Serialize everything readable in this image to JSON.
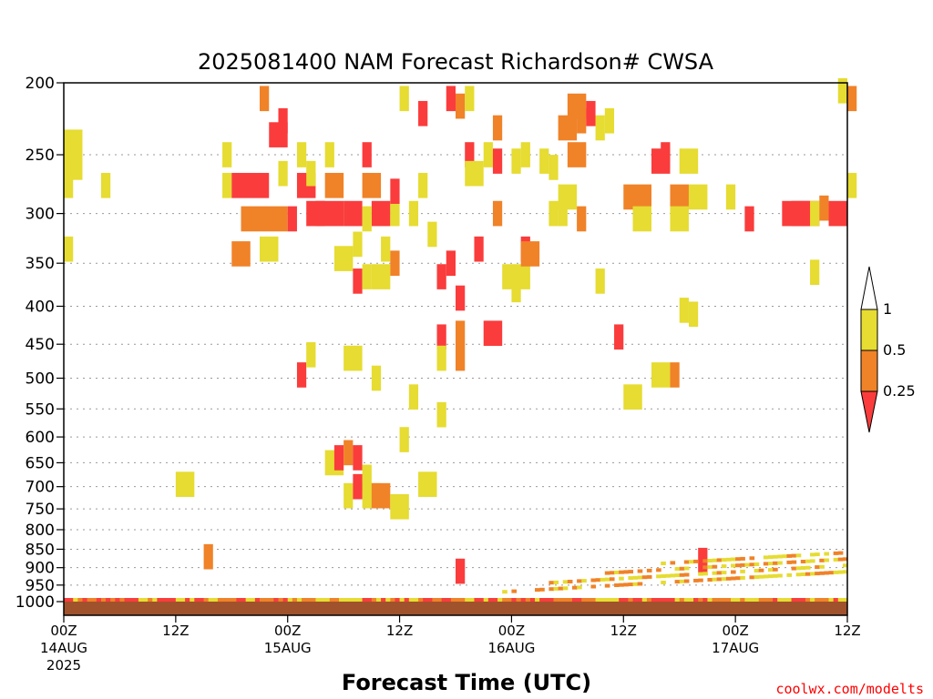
{
  "chart_data": {
    "type": "heatmap",
    "title": "2025081400 NAM Forecast Richardson# CWSA",
    "xlabel": "Forecast Time (UTC)",
    "ylabel": "",
    "credit": "coolwx.com/modelts",
    "x_hours_range": [
      0,
      84
    ],
    "y_pressure_range_hPa": [
      1000,
      200
    ],
    "y_scale": "log-pressure, inverted",
    "grid": "dotted horizontal lines at pressure ticks",
    "x_ticks": [
      {
        "hour": 0,
        "lines": [
          "00Z",
          "14AUG",
          "2025"
        ]
      },
      {
        "hour": 12,
        "lines": [
          "12Z"
        ]
      },
      {
        "hour": 24,
        "lines": [
          "00Z",
          "15AUG"
        ]
      },
      {
        "hour": 36,
        "lines": [
          "12Z"
        ]
      },
      {
        "hour": 48,
        "lines": [
          "00Z",
          "16AUG"
        ]
      },
      {
        "hour": 60,
        "lines": [
          "12Z"
        ]
      },
      {
        "hour": 72,
        "lines": [
          "00Z",
          "17AUG"
        ]
      },
      {
        "hour": 84,
        "lines": [
          "12Z"
        ]
      }
    ],
    "y_ticks": [
      200,
      250,
      300,
      350,
      400,
      450,
      500,
      550,
      600,
      650,
      700,
      750,
      800,
      850,
      900,
      950,
      1000
    ],
    "legend": {
      "position": "right",
      "labels": [
        "1",
        "0.5",
        "0.25"
      ],
      "bins": [
        {
          "range": "0.5-1",
          "color": "#e6dc32"
        },
        {
          "range": "0.25-0.5",
          "color": "#f08228"
        },
        {
          "range": "<0.25",
          "color": "#fa3c3c"
        }
      ]
    },
    "colors": {
      "low": "#fa3c3c",
      "mid": "#f08228",
      "high": "#e6dc32",
      "ground": "#a0522d"
    },
    "cells": [
      [
        0,
        250,
        2,
        2,
        "high"
      ],
      [
        0,
        275,
        1,
        1,
        "high"
      ],
      [
        0,
        335,
        1,
        1,
        "high"
      ],
      [
        4,
        275,
        1,
        1,
        "high"
      ],
      [
        12,
        695,
        2,
        1,
        "high"
      ],
      [
        17,
        250,
        1,
        1,
        "high"
      ],
      [
        17,
        275,
        1,
        1,
        "high"
      ],
      [
        18,
        275,
        4,
        1,
        "low"
      ],
      [
        19,
        305,
        5,
        1,
        "mid"
      ],
      [
        18,
        340,
        2,
        1,
        "mid"
      ],
      [
        21,
        335,
        2,
        1,
        "high"
      ],
      [
        21,
        210,
        1,
        1,
        "mid"
      ],
      [
        22,
        235,
        2,
        1,
        "low"
      ],
      [
        23,
        265,
        1,
        1,
        "high"
      ],
      [
        23,
        225,
        1,
        1,
        "low"
      ],
      [
        24,
        305,
        1,
        1,
        "low"
      ],
      [
        25,
        275,
        2,
        1,
        "low"
      ],
      [
        25,
        250,
        1,
        1,
        "high"
      ],
      [
        26,
        300,
        2,
        1,
        "low"
      ],
      [
        26,
        265,
        1,
        1,
        "high"
      ],
      [
        27,
        300,
        3,
        1,
        "low"
      ],
      [
        28,
        250,
        1,
        1,
        "high"
      ],
      [
        28,
        275,
        2,
        1,
        "mid"
      ],
      [
        29,
        345,
        2,
        1,
        "high"
      ],
      [
        30,
        300,
        2,
        1,
        "low"
      ],
      [
        31,
        330,
        1,
        1,
        "high"
      ],
      [
        31,
        370,
        1,
        1,
        "low"
      ],
      [
        32,
        365,
        1,
        1,
        "high"
      ],
      [
        32,
        250,
        1,
        1,
        "low"
      ],
      [
        32,
        275,
        2,
        1,
        "mid"
      ],
      [
        33,
        300,
        2,
        1,
        "low"
      ],
      [
        32,
        305,
        1,
        1,
        "high"
      ],
      [
        33,
        365,
        2,
        1,
        "high"
      ],
      [
        34,
        335,
        1,
        1,
        "high"
      ],
      [
        35,
        300,
        1,
        1,
        "high"
      ],
      [
        35,
        280,
        1,
        1,
        "low"
      ],
      [
        35,
        350,
        1,
        1,
        "mid"
      ],
      [
        36,
        210,
        1,
        1,
        "high"
      ],
      [
        38,
        275,
        1,
        1,
        "high"
      ],
      [
        37,
        300,
        1,
        1,
        "high"
      ],
      [
        39,
        320,
        1,
        1,
        "high"
      ],
      [
        38,
        220,
        1,
        1,
        "low"
      ],
      [
        41,
        210,
        1,
        1,
        "low"
      ],
      [
        42,
        215,
        1,
        1,
        "mid"
      ],
      [
        43,
        210,
        1,
        1,
        "high"
      ],
      [
        41,
        350,
        1,
        1,
        "low"
      ],
      [
        40,
        365,
        1,
        1,
        "low"
      ],
      [
        40,
        440,
        1,
        1,
        "low"
      ],
      [
        40,
        470,
        1,
        1,
        "high"
      ],
      [
        42,
        390,
        1,
        1,
        "low"
      ],
      [
        42,
        435,
        1,
        1,
        "mid"
      ],
      [
        42,
        470,
        1,
        1,
        "mid"
      ],
      [
        43,
        250,
        1,
        1,
        "low"
      ],
      [
        43,
        265,
        2,
        1,
        "high"
      ],
      [
        45,
        250,
        1,
        1,
        "high"
      ],
      [
        44,
        335,
        1,
        1,
        "low"
      ],
      [
        45,
        435,
        2,
        1,
        "low"
      ],
      [
        46,
        230,
        1,
        1,
        "mid"
      ],
      [
        46,
        255,
        1,
        1,
        "low"
      ],
      [
        48,
        255,
        1,
        1,
        "high"
      ],
      [
        46,
        300,
        1,
        1,
        "mid"
      ],
      [
        47,
        365,
        3,
        1,
        "high"
      ],
      [
        48,
        380,
        1,
        1,
        "high"
      ],
      [
        49,
        335,
        1,
        1,
        "low"
      ],
      [
        49,
        340,
        2,
        1,
        "mid"
      ],
      [
        49,
        250,
        1,
        1,
        "high"
      ],
      [
        51,
        255,
        1,
        1,
        "high"
      ],
      [
        52,
        260,
        1,
        1,
        "high"
      ],
      [
        52,
        300,
        1,
        1,
        "high"
      ],
      [
        53,
        300,
        1,
        1,
        "high"
      ],
      [
        53,
        230,
        2,
        1,
        "mid"
      ],
      [
        54,
        215,
        2,
        1,
        "mid"
      ],
      [
        54,
        250,
        2,
        1,
        "mid"
      ],
      [
        55,
        305,
        1,
        1,
        "mid"
      ],
      [
        57,
        230,
        1,
        1,
        "high"
      ],
      [
        58,
        225,
        1,
        1,
        "high"
      ],
      [
        55,
        225,
        1,
        1,
        "mid"
      ],
      [
        56,
        220,
        1,
        1,
        "low"
      ],
      [
        53,
        285,
        2,
        1,
        "high"
      ],
      [
        57,
        370,
        1,
        1,
        "high"
      ],
      [
        60,
        285,
        3,
        1,
        "mid"
      ],
      [
        61,
        305,
        2,
        1,
        "high"
      ],
      [
        63,
        255,
        2,
        1,
        "low"
      ],
      [
        64,
        250,
        1,
        1,
        "low"
      ],
      [
        66,
        255,
        2,
        1,
        "high"
      ],
      [
        65,
        285,
        2,
        1,
        "mid"
      ],
      [
        67,
        285,
        2,
        1,
        "high"
      ],
      [
        65,
        305,
        2,
        1,
        "high"
      ],
      [
        66,
        405,
        1,
        1,
        "high"
      ],
      [
        67,
        410,
        1,
        1,
        "high"
      ],
      [
        59,
        440,
        1,
        1,
        "low"
      ],
      [
        60,
        530,
        2,
        1,
        "high"
      ],
      [
        63,
        495,
        2,
        1,
        "high"
      ],
      [
        65,
        495,
        1,
        1,
        "mid"
      ],
      [
        71,
        285,
        1,
        1,
        "high"
      ],
      [
        73,
        305,
        1,
        1,
        "low"
      ],
      [
        77,
        300,
        2,
        1,
        "low"
      ],
      [
        78,
        300,
        2,
        1,
        "low"
      ],
      [
        79,
        300,
        2,
        1,
        "low"
      ],
      [
        82,
        300,
        2,
        1,
        "low"
      ],
      [
        81,
        295,
        1,
        1,
        "mid"
      ],
      [
        80,
        300,
        1,
        1,
        "high"
      ],
      [
        80,
        360,
        1,
        1,
        "high"
      ],
      [
        83,
        205,
        1,
        1,
        "high"
      ],
      [
        84,
        210,
        1,
        1,
        "mid"
      ],
      [
        84,
        275,
        1,
        1,
        "high"
      ],
      [
        25,
        495,
        1,
        1,
        "low"
      ],
      [
        26,
        465,
        1,
        1,
        "high"
      ],
      [
        30,
        470,
        2,
        1,
        "high"
      ],
      [
        33,
        500,
        1,
        1,
        "high"
      ],
      [
        28,
        650,
        2,
        1,
        "high"
      ],
      [
        29,
        640,
        1,
        1,
        "low"
      ],
      [
        30,
        630,
        1,
        1,
        "mid"
      ],
      [
        31,
        640,
        1,
        1,
        "low"
      ],
      [
        32,
        680,
        1,
        1,
        "high"
      ],
      [
        32,
        720,
        2,
        1,
        "high"
      ],
      [
        30,
        720,
        1,
        1,
        "high"
      ],
      [
        31,
        700,
        1,
        1,
        "low"
      ],
      [
        33,
        720,
        2,
        1,
        "mid"
      ],
      [
        35,
        745,
        2,
        1,
        "high"
      ],
      [
        37,
        530,
        1,
        1,
        "high"
      ],
      [
        36,
        605,
        1,
        1,
        "high"
      ],
      [
        38,
        695,
        2,
        1,
        "high"
      ],
      [
        40,
        560,
        1,
        1,
        "high"
      ],
      [
        68,
        880,
        1,
        1,
        "low"
      ],
      [
        42,
        910,
        1,
        1,
        "low"
      ],
      [
        15,
        870,
        1,
        1,
        "mid"
      ]
    ]
  }
}
